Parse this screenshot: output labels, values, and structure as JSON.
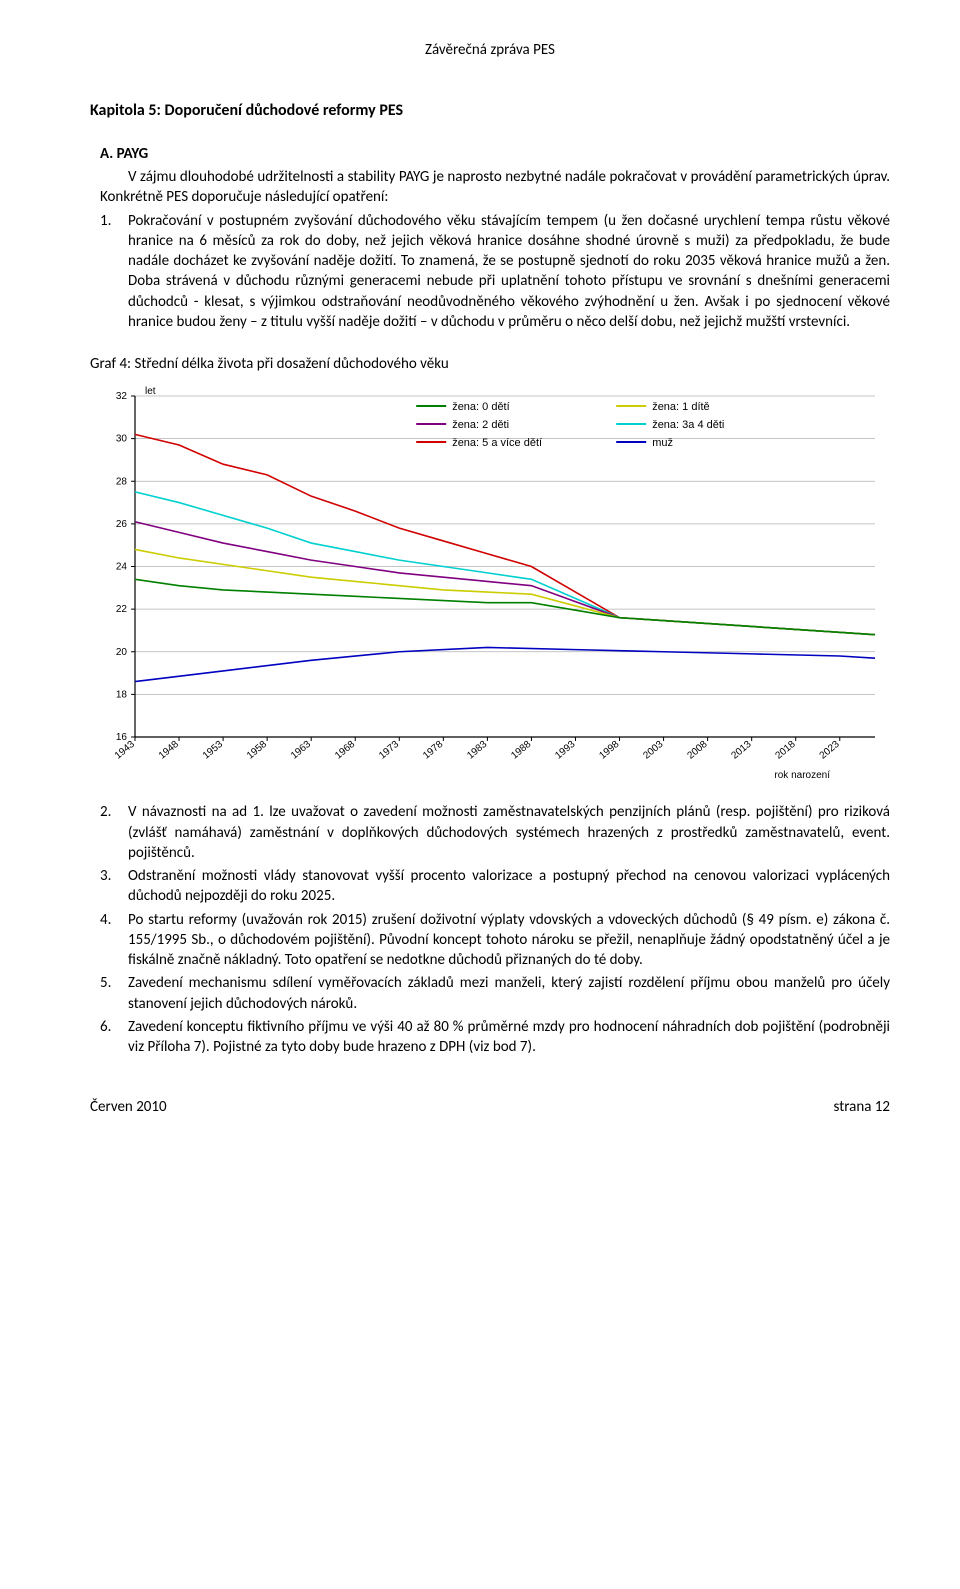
{
  "header": {
    "report": "Závěrečná zpráva PES"
  },
  "chapter": "Kapitola 5: Doporučení důchodové reformy PES",
  "sectionA": {
    "heading": "A. PAYG",
    "intro": "V zájmu dlouhodobé udržitelnosti a stability PAYG je naprosto nezbytné nadále pokračovat v provádění parametrických úprav. Konkrétně PES doporučuje následující opatření:",
    "item1": "Pokračování v postupném zvyšování důchodového věku stávajícím tempem (u žen dočasné urychlení tempa růstu věkové hranice na 6 měsíců za rok do doby, než jejich věková hranice dosáhne shodné úrovně s muži) za předpokladu, že bude nadále docházet ke zvyšování naděje dožití. To znamená, že se postupně sjednotí do roku 2035 věková hranice mužů a žen. Doba strávená v důchodu různými generacemi nebude při uplatnění tohoto přístupu ve srovnání s dnešními generacemi důchodců - klesat, s výjimkou odstraňování neodůvodněného věkového zvýhodnění u žen. Avšak i po sjednocení věkové hranice budou ženy – z titulu vyšší naděje dožití – v důchodu v průměru o něco delší dobu, než jejichž mužští vrstevníci."
  },
  "chartHeading": "Graf 4: Střední délka života při dosažení důchodového věku",
  "chart": {
    "type": "line",
    "background": "#ffffff",
    "gridColor": "#b0b0b0",
    "axisColor": "#000000",
    "yUnit": "let",
    "xTitle": "rok narození",
    "ylim": [
      16,
      32
    ],
    "ytick_step": 2,
    "yticks": [
      16,
      18,
      20,
      22,
      24,
      26,
      28,
      30,
      32
    ],
    "xticks": [
      1943,
      1948,
      1953,
      1958,
      1963,
      1968,
      1973,
      1978,
      1983,
      1988,
      1993,
      1998,
      2003,
      2008,
      2013,
      2018,
      2023
    ],
    "xlim": [
      1943,
      2027
    ],
    "line_width": 1.6,
    "legend": [
      {
        "label": "žena: 0 dětí",
        "color": "#008000"
      },
      {
        "label": "žena: 1 dítě",
        "color": "#cccc00"
      },
      {
        "label": "žena: 2 děti",
        "color": "#800080"
      },
      {
        "label": "žena: 3a 4 děti",
        "color": "#00d0d0"
      },
      {
        "label": "žena: 5 a více dětí",
        "color": "#d00000"
      },
      {
        "label": "muž",
        "color": "#0000c0"
      }
    ],
    "series": [
      {
        "name": "žena: 5 a více dětí",
        "color": "#d00000",
        "x": [
          1943,
          1948,
          1953,
          1958,
          1963,
          1968,
          1973,
          1978,
          1983,
          1988,
          1998,
          2027
        ],
        "y": [
          30.2,
          29.7,
          28.8,
          28.3,
          27.3,
          26.6,
          25.8,
          25.2,
          24.6,
          24.0,
          21.6,
          20.8
        ]
      },
      {
        "name": "žena: 3a 4 děti",
        "color": "#00d0d0",
        "x": [
          1943,
          1948,
          1953,
          1958,
          1963,
          1968,
          1973,
          1978,
          1983,
          1988,
          1998,
          2027
        ],
        "y": [
          27.5,
          27.0,
          26.4,
          25.8,
          25.1,
          24.7,
          24.3,
          24.0,
          23.7,
          23.4,
          21.6,
          20.8
        ]
      },
      {
        "name": "žena: 2 děti",
        "color": "#800080",
        "x": [
          1943,
          1948,
          1953,
          1958,
          1963,
          1968,
          1973,
          1978,
          1983,
          1988,
          1998,
          2027
        ],
        "y": [
          26.1,
          25.6,
          25.1,
          24.7,
          24.3,
          24.0,
          23.7,
          23.5,
          23.3,
          23.1,
          21.6,
          20.8
        ]
      },
      {
        "name": "žena: 1 dítě",
        "color": "#cccc00",
        "x": [
          1943,
          1948,
          1953,
          1958,
          1963,
          1968,
          1973,
          1978,
          1983,
          1988,
          1998,
          2027
        ],
        "y": [
          24.8,
          24.4,
          24.1,
          23.8,
          23.5,
          23.3,
          23.1,
          22.9,
          22.8,
          22.7,
          21.6,
          20.8
        ]
      },
      {
        "name": "žena: 0 dětí",
        "color": "#008000",
        "x": [
          1943,
          1948,
          1953,
          1958,
          1963,
          1968,
          1973,
          1978,
          1983,
          1988,
          1998,
          2027
        ],
        "y": [
          23.4,
          23.1,
          22.9,
          22.8,
          22.7,
          22.6,
          22.5,
          22.4,
          22.3,
          22.3,
          21.6,
          20.8
        ]
      },
      {
        "name": "muž",
        "color": "#0000c0",
        "x": [
          1943,
          1953,
          1963,
          1973,
          1983,
          1993,
          2003,
          2013,
          2023,
          2027
        ],
        "y": [
          18.6,
          19.1,
          19.6,
          20.0,
          20.2,
          20.1,
          20.0,
          19.9,
          19.8,
          19.7
        ]
      }
    ]
  },
  "items2to6": [
    {
      "num": "2.",
      "text": "V návaznosti na ad 1. lze uvažovat o zavedení možnosti zaměstnavatelských penzijních plánů (resp. pojištění) pro riziková (zvlášť namáhavá) zaměstnání v doplňkových důchodových systémech hrazených z prostředků zaměstnavatelů, event. pojištěnců."
    },
    {
      "num": "3.",
      "text": "Odstranění možnosti vlády stanovovat vyšší procento valorizace a postupný přechod na cenovou valorizaci vyplácených důchodů nejpozději do roku 2025."
    },
    {
      "num": "4.",
      "text": "Po startu reformy (uvažován rok 2015) zrušení doživotní výplaty vdovských a vdoveckých důchodů (§ 49 písm. e) zákona č. 155/1995 Sb., o důchodovém pojištění). Původní koncept tohoto nároku se přežil, nenaplňuje žádný opodstatněný účel a je fiskálně značně nákladný. Toto opatření se nedotkne důchodů přiznaných do té doby."
    },
    {
      "num": "5.",
      "text": "Zavedení mechanismu sdílení vyměřovacích základů mezi manželi, který zajistí rozdělení příjmu obou manželů pro účely stanovení jejich důchodových nároků."
    },
    {
      "num": "6.",
      "text": "Zavedení konceptu fiktivního příjmu ve výši 40 až 80 % průměrné mzdy pro hodnocení náhradních dob pojištění (podrobněji viz Příloha 7). Pojistné za tyto doby bude hrazeno z DPH (viz bod 7)."
    }
  ],
  "footer": {
    "left": "Červen 2010",
    "right": "strana 12"
  }
}
